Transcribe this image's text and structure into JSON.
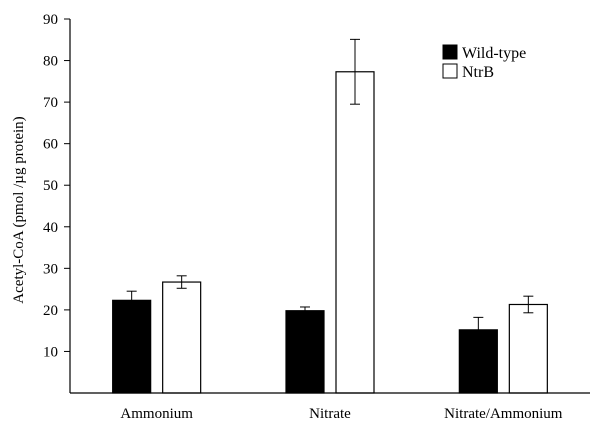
{
  "chart_data": {
    "type": "bar",
    "ylabel": "Acetyl-CoA (pmol /µg protein)",
    "xlabel": "",
    "categories": [
      "Ammonium",
      "Nitrate",
      "Nitrate/Ammonium"
    ],
    "series": [
      {
        "name": "Wild-type",
        "color": "#000000",
        "values": [
          22.3,
          19.8,
          15.2
        ],
        "errors": [
          2.2,
          0.9,
          3.0
        ]
      },
      {
        "name": "NtrB",
        "color": "#ffffff",
        "values": [
          26.7,
          77.3,
          21.3
        ],
        "errors": [
          1.5,
          7.8,
          2.0
        ]
      }
    ],
    "ylim": [
      0,
      90
    ],
    "yticks": [
      10,
      20,
      30,
      40,
      50,
      60,
      70,
      80,
      90
    ],
    "grid": false,
    "legend": "top-right"
  }
}
